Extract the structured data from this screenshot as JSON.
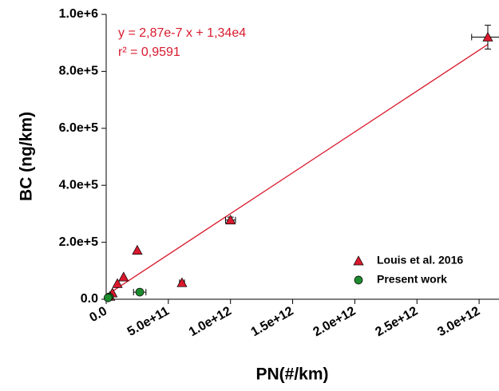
{
  "chart_data": {
    "type": "scatter",
    "x_label": "PN(#/km)",
    "y_label": "BC (ng/km)",
    "xlim": [
      0,
      3160000000000.0
    ],
    "ylim": [
      0,
      1000000
    ],
    "xticks": [
      {
        "value": 0,
        "label": "0.0"
      },
      {
        "value": 500000000000.0,
        "label": "5.0e+11"
      },
      {
        "value": 1000000000000.0,
        "label": "1.0e+12"
      },
      {
        "value": 1500000000000.0,
        "label": "1.5e+12"
      },
      {
        "value": 2000000000000.0,
        "label": "2.0e+12"
      },
      {
        "value": 2500000000000.0,
        "label": "2.5e+12"
      },
      {
        "value": 3000000000000.0,
        "label": "3.0e+12"
      }
    ],
    "yticks": [
      {
        "value": 0,
        "label": "0.0"
      },
      {
        "value": 200000,
        "label": "2.0e+5"
      },
      {
        "value": 400000,
        "label": "4.0e+5"
      },
      {
        "value": 600000,
        "label": "6.0e+5"
      },
      {
        "value": 800000,
        "label": "8.0e+5"
      },
      {
        "value": 1000000,
        "label": "1.0e+6"
      }
    ],
    "legend_position": "lower right",
    "series": [
      {
        "name": "Louis et al. 2016",
        "color": "#d9192d",
        "marker": "triangle",
        "x": [
          3070000000000.0,
          1000000000000.0,
          250000000000.0,
          610000000000.0,
          140000000000.0,
          90000000000.0,
          50000000000.0,
          30000000000.0
        ],
        "values": [
          920000,
          278000,
          172000,
          58000,
          78000,
          55000,
          22000,
          10000
        ],
        "xerr": [
          130000000000.0,
          40000000000.0,
          null,
          20000000000.0,
          null,
          null,
          null,
          null
        ],
        "yerr": [
          42000,
          10000,
          null,
          null,
          null,
          null,
          null,
          null
        ]
      },
      {
        "name": "Present work",
        "color": "#1e8a2e",
        "marker": "circle",
        "x": [
          270000000000.0,
          25000000000.0,
          15000000000.0
        ],
        "values": [
          25000,
          8000,
          5000
        ],
        "xerr": [
          50000000000.0,
          null,
          null
        ],
        "yerr": [
          null,
          null,
          null
        ]
      }
    ],
    "fit": {
      "slope": 2.87e-07,
      "intercept": 13400,
      "color": "#d9192d",
      "equation": "y =  2,87e-7 x + 1,34e4",
      "r2": "r² = 0,9591"
    }
  }
}
